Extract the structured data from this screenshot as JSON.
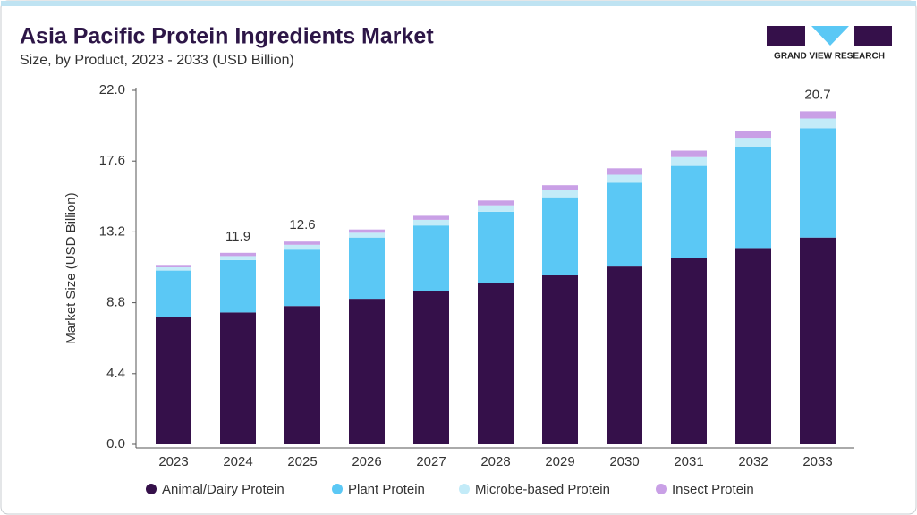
{
  "chart_data": {
    "type": "stacked-bar",
    "title": "Asia Pacific Protein Ingredients Market",
    "subtitle": "Size, by Product, 2023 - 2033 (USD Billion)",
    "y_label": "Market Size (USD Billion)",
    "brand": "GRAND VIEW RESEARCH",
    "categories": [
      "2023",
      "2024",
      "2025",
      "2026",
      "2027",
      "2028",
      "2029",
      "2030",
      "2031",
      "2032",
      "2033"
    ],
    "series": [
      {
        "name": "Animal/Dairy Protein",
        "color": "#35104a",
        "values": [
          7.9,
          8.2,
          8.6,
          9.05,
          9.5,
          10.0,
          10.5,
          11.05,
          11.6,
          12.2,
          12.85
        ]
      },
      {
        "name": "Plant Protein",
        "color": "#5bc8f5",
        "values": [
          2.9,
          3.25,
          3.5,
          3.8,
          4.1,
          4.45,
          4.85,
          5.2,
          5.7,
          6.3,
          6.8
        ]
      },
      {
        "name": "Microbe-based Protein",
        "color": "#c3ebf8",
        "values": [
          0.2,
          0.25,
          0.3,
          0.3,
          0.35,
          0.4,
          0.45,
          0.5,
          0.55,
          0.55,
          0.6
        ]
      },
      {
        "name": "Insect Protein",
        "color": "#c9a0e6",
        "values": [
          0.15,
          0.2,
          0.2,
          0.2,
          0.25,
          0.3,
          0.3,
          0.4,
          0.4,
          0.45,
          0.45
        ]
      }
    ],
    "annotations": [
      {
        "x": "2024",
        "value": 11.9
      },
      {
        "x": "2025",
        "value": 12.6
      },
      {
        "x": "2033",
        "value": 20.7
      }
    ],
    "ylim": [
      0,
      22
    ],
    "yticks": [
      {
        "value": 0,
        "label": "0.0"
      },
      4.4,
      8.8,
      13.2,
      17.6,
      {
        "value": 22,
        "label": "22.0"
      }
    ],
    "grid": false
  }
}
